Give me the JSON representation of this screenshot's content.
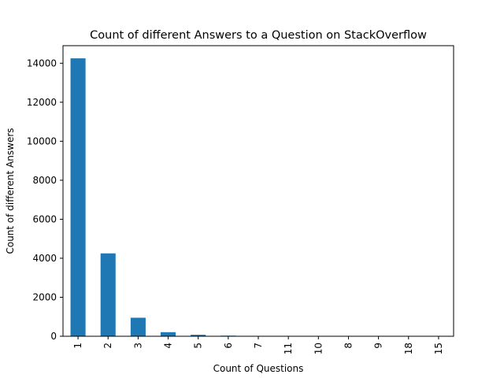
{
  "chart_data": {
    "type": "bar",
    "title": "Count of different Answers to a Question on StackOverflow",
    "xlabel": "Count of Questions",
    "ylabel": "Count of different Answers",
    "categories": [
      "1",
      "2",
      "3",
      "4",
      "5",
      "6",
      "7",
      "11",
      "10",
      "8",
      "9",
      "18",
      "15"
    ],
    "values": [
      14250,
      4250,
      950,
      210,
      75,
      30,
      15,
      10,
      8,
      6,
      5,
      3,
      2
    ],
    "ylim": [
      0,
      14900
    ],
    "yticks": [
      0,
      2000,
      4000,
      6000,
      8000,
      10000,
      12000,
      14000
    ],
    "bar_color": "#1f77b4",
    "grid": false,
    "legend": "none"
  }
}
